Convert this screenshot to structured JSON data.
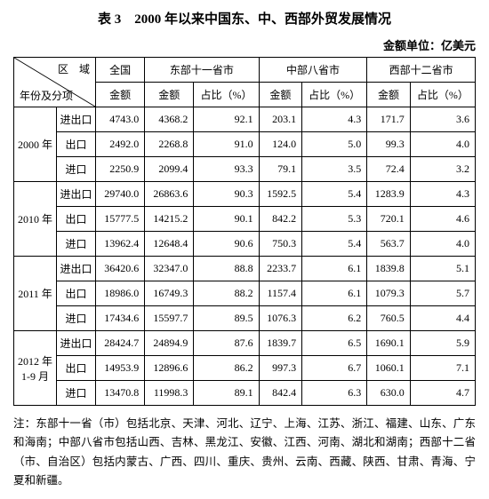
{
  "title": "表 3　2000 年以来中国东、中、西部外贸发展情况",
  "unit_label": "金额单位：亿美元",
  "diag": {
    "top": "区　域",
    "bottom": "年份及分项"
  },
  "regions": {
    "national": "全国",
    "east": "东部十一省市",
    "central": "中部八省市",
    "west": "西部十二省市"
  },
  "subhead": {
    "amount": "金额",
    "share": "占比（%）"
  },
  "row_labels": {
    "total": "进出口",
    "export": "出口",
    "import": "进口"
  },
  "years": [
    "2000 年",
    "2010 年",
    "2011 年",
    "2012 年1-9 月"
  ],
  "rows": [
    [
      "4743.0",
      "4368.2",
      "92.1",
      "203.1",
      "4.3",
      "171.7",
      "3.6"
    ],
    [
      "2492.0",
      "2268.8",
      "91.0",
      "124.0",
      "5.0",
      "99.3",
      "4.0"
    ],
    [
      "2250.9",
      "2099.4",
      "93.3",
      "79.1",
      "3.5",
      "72.4",
      "3.2"
    ],
    [
      "29740.0",
      "26863.6",
      "90.3",
      "1592.5",
      "5.4",
      "1283.9",
      "4.3"
    ],
    [
      "15777.5",
      "14215.2",
      "90.1",
      "842.2",
      "5.3",
      "720.1",
      "4.6"
    ],
    [
      "13962.4",
      "12648.4",
      "90.6",
      "750.3",
      "5.4",
      "563.7",
      "4.0"
    ],
    [
      "36420.6",
      "32347.0",
      "88.8",
      "2233.7",
      "6.1",
      "1839.8",
      "5.1"
    ],
    [
      "18986.0",
      "16749.3",
      "88.2",
      "1157.4",
      "6.1",
      "1079.3",
      "5.7"
    ],
    [
      "17434.6",
      "15597.7",
      "89.5",
      "1076.3",
      "6.2",
      "760.5",
      "4.4"
    ],
    [
      "28424.7",
      "24894.9",
      "87.6",
      "1839.7",
      "6.5",
      "1690.1",
      "5.9"
    ],
    [
      "14953.9",
      "12896.6",
      "86.2",
      "997.3",
      "6.7",
      "1060.1",
      "7.1"
    ],
    [
      "13470.8",
      "11998.3",
      "89.1",
      "842.4",
      "6.3",
      "630.0",
      "4.7"
    ]
  ],
  "footnote": "注：东部十一省（市）包括北京、天津、河北、辽宁、上海、江苏、浙江、福建、山东、广东和海南；中部八省市包括山西、吉林、黑龙江、安徽、江西、河南、湖北和湖南；西部十二省（市、自治区）包括内蒙古、广西、四川、重庆、贵州、云南、西藏、陕西、甘肃、青海、宁夏和新疆。",
  "colors": {
    "border": "#000000",
    "bg": "#ffffff",
    "text": "#000000"
  }
}
